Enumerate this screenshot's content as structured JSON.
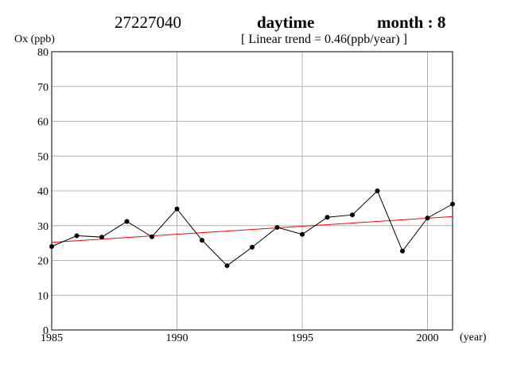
{
  "header": {
    "station": "27227040",
    "period": "daytime",
    "month_label": "month : 8",
    "trend_label": "[ Linear trend = 0.46(ppb/year) ]"
  },
  "chart_data": {
    "type": "line",
    "ylabel": "Ox (ppb)",
    "xlabel": "(year)",
    "xlim": [
      1985,
      2001
    ],
    "ylim": [
      0,
      80
    ],
    "x_ticks": [
      1985,
      1990,
      1995,
      2000
    ],
    "y_ticks": [
      0,
      10,
      20,
      30,
      40,
      50,
      60,
      70,
      80
    ],
    "grid": true,
    "x": [
      1985,
      1986,
      1987,
      1988,
      1989,
      1990,
      1991,
      1992,
      1993,
      1994,
      1995,
      1996,
      1997,
      1998,
      1999,
      2000,
      2001
    ],
    "series": [
      {
        "values": [
          24.0,
          27.1,
          26.7,
          31.2,
          26.8,
          34.8,
          25.8,
          18.5,
          23.8,
          29.5,
          27.5,
          32.4,
          33.1,
          40.0,
          22.7,
          32.2,
          36.2
        ],
        "color": "#000000"
      }
    ],
    "trend": {
      "slope": 0.46,
      "start": [
        1985,
        25.2
      ],
      "end": [
        2001,
        32.6
      ],
      "color": "#ff0000"
    }
  }
}
